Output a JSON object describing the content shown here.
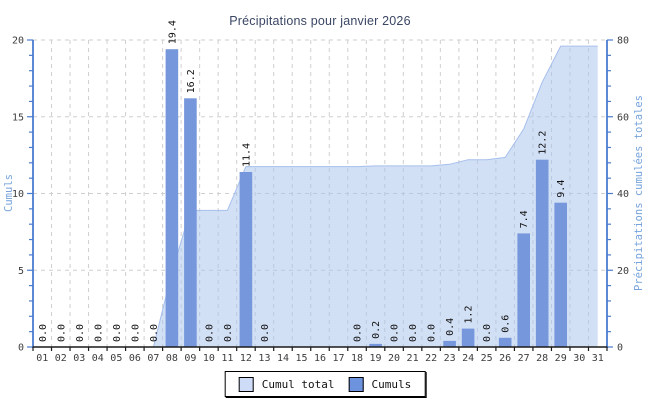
{
  "chart_data": {
    "type": "bar",
    "subtype": "bar-and-cumulative-area-combo",
    "title": "Précipitations pour janvier 2026",
    "categories": [
      "01",
      "02",
      "03",
      "04",
      "05",
      "06",
      "07",
      "08",
      "09",
      "10",
      "11",
      "12",
      "13",
      "14",
      "15",
      "16",
      "17",
      "18",
      "19",
      "20",
      "21",
      "22",
      "23",
      "24",
      "25",
      "26",
      "27",
      "28",
      "29",
      "30",
      "31"
    ],
    "series": [
      {
        "name": "Cumul total",
        "type": "area",
        "axis": "right",
        "values": [
          0,
          0,
          0,
          0,
          0,
          0,
          0,
          19.4,
          35.6,
          35.6,
          35.6,
          47.0,
          47.0,
          47.0,
          47.0,
          47.0,
          47.0,
          47.0,
          47.2,
          47.2,
          47.2,
          47.2,
          47.6,
          48.8,
          48.8,
          49.4,
          56.8,
          69.0,
          78.4,
          78.4,
          78.4
        ]
      },
      {
        "name": "Cumuls",
        "type": "bar",
        "axis": "left",
        "values": [
          0,
          0,
          0,
          0,
          0,
          0,
          0,
          19.4,
          16.2,
          0,
          0,
          11.4,
          0,
          null,
          null,
          null,
          null,
          0,
          0.2,
          0,
          0,
          0,
          0.4,
          1.2,
          0,
          0.6,
          7.4,
          12.2,
          9.4,
          null,
          null
        ],
        "value_labels": [
          "0.0",
          "0.0",
          "0.0",
          "0.0",
          "0.0",
          "0.0",
          "0.0",
          "19.4",
          "16.2",
          "0.0",
          "0.0",
          "11.4",
          "0.0",
          null,
          null,
          null,
          null,
          "0.0",
          "0.2",
          "0.0",
          "0.0",
          "0.0",
          "0.4",
          "1.2",
          "0.0",
          "0.6",
          "7.4",
          "12.2",
          "9.4",
          null,
          null
        ]
      }
    ],
    "left_axis": {
      "label": "Cumuls",
      "min": 0,
      "max": 20,
      "major_ticks": [
        0,
        5,
        10,
        15,
        20
      ],
      "minor_step": 1
    },
    "right_axis": {
      "label": "Précipitations cumulées totales",
      "min": 0,
      "max": 80,
      "major_ticks": [
        0,
        20,
        40,
        60,
        80
      ],
      "minor_step": 4
    },
    "grid": "dashed, vertical per day and horizontal per major tick",
    "legend": [
      {
        "label": "Cumul total",
        "color": "#cfdcf7"
      },
      {
        "label": "Cumuls",
        "color": "#6e93de"
      }
    ],
    "colors": {
      "bar": "#7697db",
      "area_fill": "#aac4ee",
      "area_edge": "#a6bfec",
      "y_axis": "#4a7bd0",
      "x_axis": "#1a1a1a",
      "grid_line": "#cfcfcf",
      "tick_label": "#3c3c3c",
      "axis_title": "#76a3dc",
      "value_label": "#111111",
      "title": "#3a4664"
    }
  }
}
